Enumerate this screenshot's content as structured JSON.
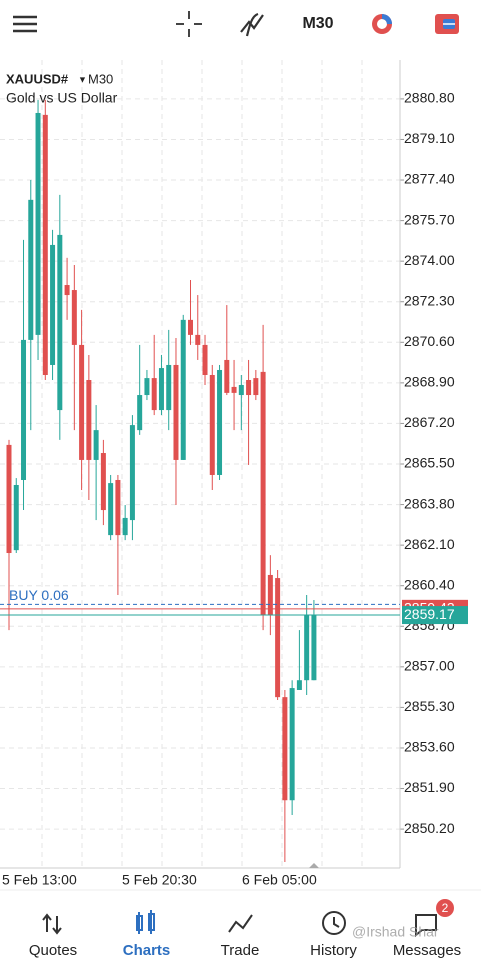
{
  "toolbar": {
    "timeframe": "M30"
  },
  "chart_data": {
    "type": "candlestick",
    "symbol": "XAUUSD#",
    "timeframe": "M30",
    "subtitle": "Gold vs US Dollar",
    "up_color": "#26a69a",
    "down_color": "#e0504f",
    "open": [
      2866.3,
      2861.89,
      2864.83,
      2870.7,
      2870.91,
      2880.13,
      2869.65,
      2867.76,
      2873.0,
      2872.79,
      2870.49,
      2869.02,
      2865.67,
      2865.96,
      2862.52,
      2864.83,
      2862.52,
      2863.15,
      2866.92,
      2868.39,
      2869.1,
      2867.76,
      2867.76,
      2869.65,
      2865.67,
      2871.54,
      2870.91,
      2870.49,
      2869.23,
      2865.04,
      2869.86,
      2868.73,
      2868.39,
      2869.02,
      2869.1,
      2869.36,
      2860.85,
      2860.72,
      2855.73,
      2851.41,
      2856.03,
      2856.44,
      2856.44
    ],
    "high": [
      2866.51,
      2864.91,
      2874.89,
      2877.4,
      2880.76,
      2880.76,
      2875.31,
      2876.78,
      2874.14,
      2873.84,
      2871.96,
      2870.07,
      2867.97,
      2866.51,
      2865.04,
      2865.04,
      2863.78,
      2867.55,
      2870.49,
      2869.44,
      2870.91,
      2870.07,
      2871.12,
      2870.78,
      2871.75,
      2873.21,
      2872.58,
      2870.91,
      2869.65,
      2869.65,
      2872.16,
      2869.86,
      2869.23,
      2869.86,
      2869.44,
      2871.33,
      2861.68,
      2861.06,
      2856.03,
      2856.44,
      2858.54,
      2860.01,
      2859.8
    ],
    "low": [
      2858.54,
      2861.77,
      2863.57,
      2866.92,
      2869.86,
      2869.02,
      2869.02,
      2866.51,
      2871.54,
      2866.92,
      2864.41,
      2863.99,
      2863.15,
      2862.94,
      2862.31,
      2860.01,
      2862.31,
      2862.31,
      2866.72,
      2868.18,
      2867.55,
      2867.55,
      2866.92,
      2863.78,
      2865.67,
      2870.49,
      2869.86,
      2868.81,
      2864.41,
      2864.83,
      2868.39,
      2866.92,
      2866.92,
      2865.46,
      2868.18,
      2858.54,
      2858.33,
      2855.61,
      2848.82,
      2850.79,
      2856.03,
      2855.82,
      2856.44
    ],
    "close": [
      2861.77,
      2864.62,
      2870.7,
      2876.57,
      2880.21,
      2869.23,
      2874.68,
      2875.1,
      2872.58,
      2870.49,
      2865.67,
      2865.67,
      2866.92,
      2863.57,
      2864.7,
      2862.52,
      2863.24,
      2867.13,
      2868.39,
      2869.1,
      2867.76,
      2869.52,
      2869.65,
      2865.67,
      2871.54,
      2870.91,
      2870.49,
      2869.23,
      2865.04,
      2869.44,
      2868.48,
      2868.48,
      2868.81,
      2868.39,
      2868.39,
      2859.17,
      2859.17,
      2855.73,
      2851.41,
      2856.11,
      2856.44,
      2859.17,
      2859.17
    ],
    "ylim": [
      2848.57,
      2882.43
    ],
    "yticks": [
      {
        "value": 2880.8,
        "label": "2880.80"
      },
      {
        "value": 2879.1,
        "label": "2879.10"
      },
      {
        "value": 2877.4,
        "label": "2877.40"
      },
      {
        "value": 2875.7,
        "label": "2875.70"
      },
      {
        "value": 2874.0,
        "label": "2874.00"
      },
      {
        "value": 2872.3,
        "label": "2872.30"
      },
      {
        "value": 2870.6,
        "label": "2870.60"
      },
      {
        "value": 2868.9,
        "label": "2868.90"
      },
      {
        "value": 2867.2,
        "label": "2867.20"
      },
      {
        "value": 2865.5,
        "label": "2865.50"
      },
      {
        "value": 2863.8,
        "label": "2863.80"
      },
      {
        "value": 2862.1,
        "label": "2862.10"
      },
      {
        "value": 2860.4,
        "label": "2860.40"
      },
      {
        "value": 2858.7,
        "label": "2858.70"
      },
      {
        "value": 2857.0,
        "label": "2857.00"
      },
      {
        "value": 2855.3,
        "label": "2855.30"
      },
      {
        "value": 2853.6,
        "label": "2853.60"
      },
      {
        "value": 2851.9,
        "label": "2851.90"
      },
      {
        "value": 2850.2,
        "label": "2850.20"
      }
    ],
    "xticks": [
      "5 Feb 13:00",
      "5 Feb 20:30",
      "6 Feb 05:00"
    ],
    "grid": true,
    "position": {
      "label": "BUY 0.06",
      "price": 2859.62
    },
    "price_lines": [
      {
        "value": 2859.43,
        "color": "#e0504f"
      },
      {
        "value": 2859.17,
        "color": "#26a69a"
      }
    ]
  },
  "tabs": [
    "Quotes",
    "Charts",
    "Trade",
    "History",
    "Messages"
  ],
  "badge": "2",
  "watermark": "@Irshad Shar"
}
